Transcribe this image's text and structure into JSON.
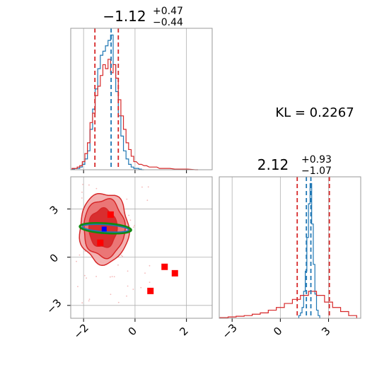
{
  "chart_data": {
    "type": "corner-plot",
    "annotation": "KL = 0.2267",
    "colors": {
      "blue": "#1f77b4",
      "red": "#d62728",
      "green": "#118a11",
      "marker_red": "#ff0000",
      "marker_blue": "#0000ff",
      "grid": "#b0b0b0"
    },
    "panels": [
      {
        "id": "hist-top",
        "type": "step-histogram",
        "title": {
          "value": "−1.12",
          "sup": "+0.47",
          "sub": "−0.44"
        },
        "xlim": [
          -2.5,
          3.0
        ],
        "x_ticks": [
          -2,
          0,
          2
        ],
        "tick_labels_shown": false,
        "quantile_lines": [
          {
            "x": -1.56,
            "color": "red"
          },
          {
            "x": -0.93,
            "color": "blue"
          },
          {
            "x": -0.65,
            "color": "red"
          }
        ],
        "series": [
          {
            "color": "blue",
            "x": [
              -2.4,
              -2.3,
              -2.2,
              -2.1,
              -2.0,
              -1.9,
              -1.8,
              -1.7,
              -1.6,
              -1.5,
              -1.4,
              -1.3,
              -1.2,
              -1.1,
              -1.0,
              -0.9,
              -0.8,
              -0.7,
              -0.6,
              -0.5,
              -0.4,
              -0.3,
              -0.2,
              -0.1,
              0.0,
              0.1,
              0.2,
              0.3
            ],
            "values": [
              0.5,
              1,
              1,
              2,
              4,
              8,
              14,
              30,
              45,
              60,
              75,
              85,
              88,
              92,
              96,
              100,
              78,
              58,
              40,
              25,
              14,
              8,
              4,
              2,
              1,
              1,
              0.5,
              0
            ]
          },
          {
            "color": "red",
            "x": [
              -2.4,
              -2.3,
              -2.2,
              -2.1,
              -2.0,
              -1.9,
              -1.8,
              -1.7,
              -1.6,
              -1.5,
              -1.4,
              -1.3,
              -1.2,
              -1.1,
              -1.0,
              -0.9,
              -0.8,
              -0.7,
              -0.6,
              -0.5,
              -0.4,
              -0.3,
              -0.2,
              -0.1,
              0.0,
              0.2,
              0.4,
              0.6,
              0.8,
              1.0,
              1.3,
              1.6,
              2.0,
              2.4
            ],
            "values": [
              1,
              1,
              2,
              3,
              6,
              12,
              20,
              35,
              42,
              55,
              62,
              70,
              78,
              75,
              82,
              72,
              78,
              68,
              52,
              40,
              30,
              20,
              15,
              10,
              6,
              4,
              3,
              2,
              2,
              1,
              1,
              0.5,
              0.5,
              0
            ]
          }
        ]
      },
      {
        "id": "scatter-2d",
        "type": "contour-scatter",
        "xlim": [
          -2.5,
          3.0
        ],
        "ylim": [
          -3.8,
          5.0
        ],
        "x_ticks": [
          -2,
          0,
          2
        ],
        "y_ticks": [
          -3,
          0,
          3
        ],
        "x_tick_labels": [
          "−2",
          "0",
          "2"
        ],
        "y_tick_labels": [
          "−3",
          "0",
          "3"
        ],
        "red_contour_levels": [
          {
            "center": [
              -1.2,
              1.8
            ],
            "rx": 0.95,
            "ry": 2.2
          },
          {
            "center": [
              -1.2,
              1.8
            ],
            "rx": 0.8,
            "ry": 1.8
          },
          {
            "center": [
              -1.25,
              1.8
            ],
            "rx": 0.55,
            "ry": 1.2
          }
        ],
        "green_contour": {
          "center": [
            -1.15,
            1.8
          ],
          "rx": 1.0,
          "ry": 0.3
        },
        "blue_contour": {
          "center": [
            -1.15,
            1.8
          ],
          "rx": 0.9,
          "ry": 0.22
        },
        "red_markers": [
          {
            "x": -0.95,
            "y": 2.65
          },
          {
            "x": -1.35,
            "y": 0.9
          },
          {
            "x": 1.15,
            "y": -0.6
          },
          {
            "x": 1.55,
            "y": -1.0
          },
          {
            "x": 0.6,
            "y": -2.1
          }
        ],
        "blue_marker": {
          "x": -1.2,
          "y": 1.75
        }
      },
      {
        "id": "hist-right",
        "type": "step-histogram",
        "title": {
          "value": "2.12",
          "sup": "+0.93",
          "sub": "−1.07"
        },
        "xlim": [
          -3.8,
          5.0
        ],
        "x_ticks": [
          -3,
          0,
          3
        ],
        "x_tick_labels": [
          "−3",
          "0",
          "3"
        ],
        "quantile_lines": [
          {
            "x": 1.05,
            "color": "red"
          },
          {
            "x": 1.62,
            "color": "blue"
          },
          {
            "x": 1.9,
            "color": "blue"
          },
          {
            "x": 3.05,
            "color": "red"
          }
        ],
        "series": [
          {
            "color": "blue",
            "x": [
              1.2,
              1.3,
              1.4,
              1.5,
              1.6,
              1.7,
              1.8,
              1.9,
              2.0,
              2.1,
              2.2,
              2.3,
              2.4
            ],
            "values": [
              2,
              4,
              8,
              20,
              35,
              60,
              85,
              100,
              70,
              40,
              18,
              6,
              2
            ]
          },
          {
            "color": "red",
            "x": [
              -3.5,
              -3.0,
              -2.5,
              -2.0,
              -1.5,
              -1.0,
              -0.5,
              0.0,
              0.5,
              1.0,
              1.5,
              2.0,
              2.5,
              3.0,
              3.5,
              4.0,
              4.5
            ],
            "values": [
              0.5,
              1,
              1.5,
              2,
              3,
              4,
              6,
              8,
              11,
              14,
              17,
              20,
              17,
              12,
              8,
              5,
              2
            ]
          }
        ]
      }
    ]
  }
}
